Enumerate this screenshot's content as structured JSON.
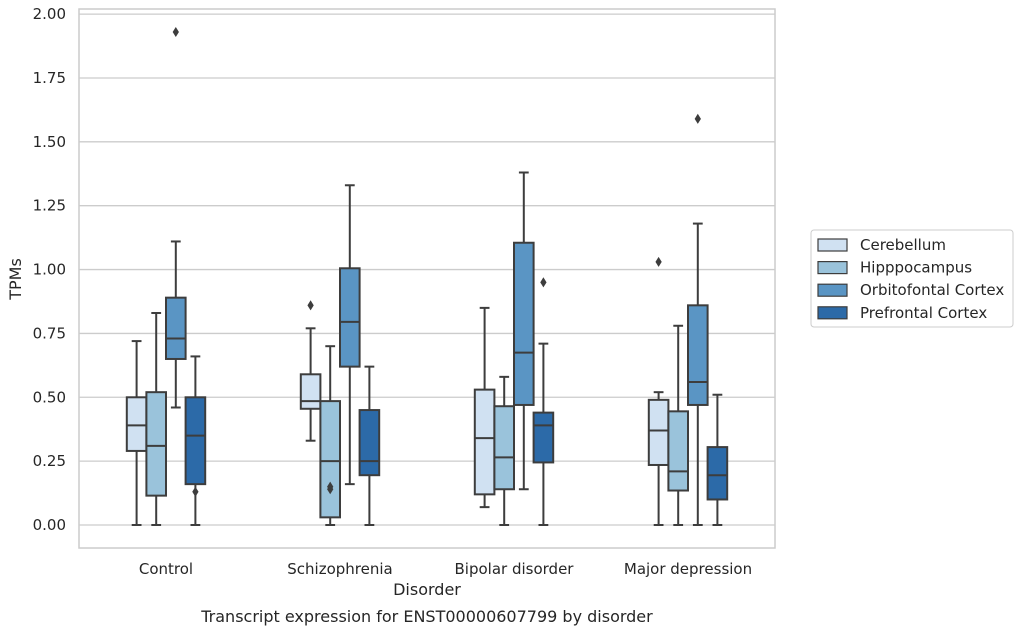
{
  "chart_data": {
    "type": "boxplot",
    "caption": "Transcript expression for ENST00000607799 by disorder",
    "xlabel": "Disorder",
    "ylabel": "TPMs",
    "ylim": [
      -0.09,
      2.02
    ],
    "yticks": [
      "0.00",
      "0.25",
      "0.50",
      "0.75",
      "1.00",
      "1.25",
      "1.50",
      "1.75",
      "2.00"
    ],
    "grid": true,
    "legend_position": "right",
    "categories": [
      "Control",
      "Schizophrenia",
      "Bipolar disorder",
      "Major depression"
    ],
    "series": [
      {
        "name": "Cerebellum",
        "color": "#d0e1f2",
        "boxes": [
          {
            "whisker_low": 0.0,
            "q1": 0.29,
            "median": 0.39,
            "q3": 0.5,
            "whisker_high": 0.72,
            "outliers": []
          },
          {
            "whisker_low": 0.33,
            "q1": 0.455,
            "median": 0.485,
            "q3": 0.59,
            "whisker_high": 0.77,
            "outliers": [
              0.86
            ]
          },
          {
            "whisker_low": 0.07,
            "q1": 0.12,
            "median": 0.34,
            "q3": 0.53,
            "whisker_high": 0.85,
            "outliers": []
          },
          {
            "whisker_low": 0.0,
            "q1": 0.235,
            "median": 0.37,
            "q3": 0.49,
            "whisker_high": 0.52,
            "outliers": [
              1.03
            ]
          }
        ]
      },
      {
        "name": "Hipppocampus",
        "color": "#9ac3db",
        "boxes": [
          {
            "whisker_low": 0.0,
            "q1": 0.115,
            "median": 0.31,
            "q3": 0.52,
            "whisker_high": 0.83,
            "outliers": []
          },
          {
            "whisker_low": 0.0,
            "q1": 0.03,
            "median": 0.25,
            "q3": 0.485,
            "whisker_high": 0.7,
            "outliers": [
              0.14,
              0.15
            ]
          },
          {
            "whisker_low": 0.0,
            "q1": 0.14,
            "median": 0.265,
            "q3": 0.465,
            "whisker_high": 0.58,
            "outliers": []
          },
          {
            "whisker_low": 0.0,
            "q1": 0.135,
            "median": 0.21,
            "q3": 0.445,
            "whisker_high": 0.78,
            "outliers": []
          }
        ]
      },
      {
        "name": "Orbitofontal Cortex",
        "color": "#5a95c4",
        "boxes": [
          {
            "whisker_low": 0.46,
            "q1": 0.65,
            "median": 0.73,
            "q3": 0.89,
            "whisker_high": 1.11,
            "outliers": [
              1.93
            ]
          },
          {
            "whisker_low": 0.16,
            "q1": 0.62,
            "median": 0.795,
            "q3": 1.005,
            "whisker_high": 1.33,
            "outliers": []
          },
          {
            "whisker_low": 0.14,
            "q1": 0.47,
            "median": 0.675,
            "q3": 1.105,
            "whisker_high": 1.38,
            "outliers": []
          },
          {
            "whisker_low": 0.0,
            "q1": 0.47,
            "median": 0.56,
            "q3": 0.86,
            "whisker_high": 1.18,
            "outliers": [
              1.59
            ]
          }
        ]
      },
      {
        "name": "Prefrontal Cortex",
        "color": "#2c6aa8",
        "boxes": [
          {
            "whisker_low": 0.0,
            "q1": 0.16,
            "median": 0.35,
            "q3": 0.5,
            "whisker_high": 0.66,
            "outliers": [
              0.13
            ]
          },
          {
            "whisker_low": 0.0,
            "q1": 0.195,
            "median": 0.25,
            "q3": 0.45,
            "whisker_high": 0.62,
            "outliers": []
          },
          {
            "whisker_low": 0.0,
            "q1": 0.245,
            "median": 0.39,
            "q3": 0.44,
            "whisker_high": 0.71,
            "outliers": [
              0.95
            ]
          },
          {
            "whisker_low": 0.0,
            "q1": 0.1,
            "median": 0.195,
            "q3": 0.305,
            "whisker_high": 0.51,
            "outliers": []
          }
        ]
      }
    ]
  }
}
